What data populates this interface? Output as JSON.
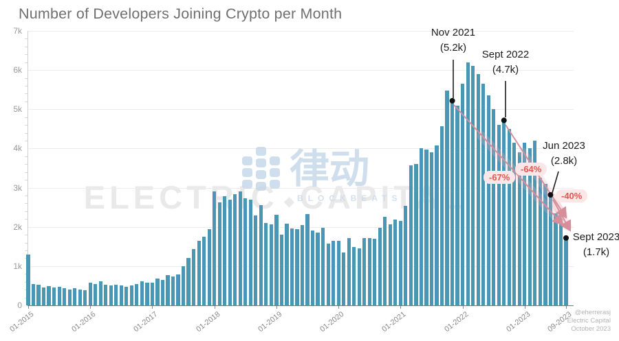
{
  "title": "Number of Developers Joining Crypto per Month",
  "watermark": {
    "electric": "ELECTRIC",
    "capital": "CAPITAL",
    "diamond_icon": "◆",
    "blockbeats_cn": "律动",
    "blockbeats_en": "BLOCKBEATS",
    "blockbeats_color": "#c3d6e8",
    "electric_color": "#e9e9e9"
  },
  "credit": {
    "handle": "@eherrerasj",
    "org": "Electric Capital",
    "date": "October 2023"
  },
  "chart_data": {
    "type": "bar",
    "title": "Number of Developers Joining Crypto per Month",
    "xlabel": "",
    "ylabel": "",
    "ylim": [
      0,
      7000
    ],
    "grid": "horizontal",
    "bar_color": "#4a96b5",
    "arrow_color": "#d48f9b",
    "decline_text_color": "#e25550",
    "start_month": "2015-01",
    "end_month": "2023-09",
    "y_tick_labels": [
      "0",
      "1k",
      "2k",
      "3k",
      "4k",
      "5k",
      "6k",
      "7k"
    ],
    "x_ticks": [
      {
        "label": "01-2015",
        "i": 0
      },
      {
        "label": "01-2016",
        "i": 12
      },
      {
        "label": "01-2017",
        "i": 24
      },
      {
        "label": "01-2018",
        "i": 36
      },
      {
        "label": "01-2019",
        "i": 48
      },
      {
        "label": "01-2020",
        "i": 60
      },
      {
        "label": "01-2021",
        "i": 72
      },
      {
        "label": "01-2022",
        "i": 84
      },
      {
        "label": "01-2023",
        "i": 96
      },
      {
        "label": "09-2023",
        "i": 104
      }
    ],
    "values_unit": "thousands of developers",
    "values_k": [
      1.3,
      0.55,
      0.53,
      0.45,
      0.49,
      0.46,
      0.47,
      0.44,
      0.41,
      0.44,
      0.41,
      0.38,
      0.58,
      0.55,
      0.61,
      0.53,
      0.5,
      0.53,
      0.5,
      0.47,
      0.5,
      0.55,
      0.61,
      0.58,
      0.58,
      0.68,
      0.64,
      0.77,
      0.73,
      0.79,
      1.0,
      1.2,
      1.43,
      1.65,
      1.75,
      1.95,
      2.9,
      2.63,
      2.78,
      2.7,
      2.83,
      2.9,
      2.73,
      2.69,
      2.3,
      2.55,
      2.1,
      2.06,
      2.31,
      1.81,
      2.09,
      1.96,
      1.95,
      2.05,
      2.32,
      1.9,
      1.85,
      1.98,
      1.58,
      1.65,
      1.64,
      1.35,
      1.71,
      1.49,
      1.46,
      1.71,
      1.72,
      1.7,
      1.98,
      2.26,
      2.06,
      2.19,
      2.16,
      2.53,
      3.57,
      3.6,
      4.0,
      3.98,
      3.9,
      4.07,
      4.56,
      5.47,
      5.2,
      5.1,
      5.65,
      6.2,
      6.1,
      5.9,
      5.65,
      5.35,
      5.0,
      4.6,
      4.7,
      4.5,
      4.15,
      3.9,
      4.15,
      4.0,
      4.2,
      3.25,
      3.1,
      2.8,
      2.35,
      2.2,
      1.7
    ],
    "annotations": [
      {
        "label": "Nov 2021",
        "value_label": "(5.2k)",
        "month": "2021-11",
        "month_index": 82,
        "value_k": 5.2
      },
      {
        "label": "Sept 2022",
        "value_label": "(4.7k)",
        "month": "2022-09",
        "month_index": 92,
        "value_k": 4.7
      },
      {
        "label": "Jun 2023",
        "value_label": "(2.8k)",
        "month": "2023-06",
        "month_index": 101,
        "value_k": 2.8
      },
      {
        "label": "Sept 2023",
        "value_label": "(1.7k)",
        "month": "2023-09",
        "month_index": 104,
        "value_k": 1.7
      }
    ],
    "declines": [
      {
        "label": "-67%",
        "from": "Nov 2021",
        "to": "Sept 2023"
      },
      {
        "label": "-64%",
        "from": "Sept 2022",
        "to": "Sept 2023"
      },
      {
        "label": "-40%",
        "from": "Jun 2023",
        "to": "Sept 2023"
      }
    ]
  }
}
